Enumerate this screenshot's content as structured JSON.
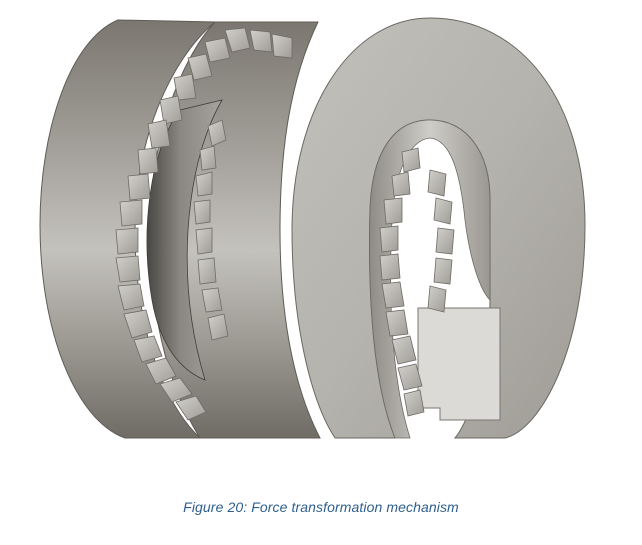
{
  "figure": {
    "caption": "Figure 20: Force transformation mechanism",
    "caption_color": "#2e5f8f",
    "image_subject": "force-transformation-mechanism-3d-render"
  }
}
